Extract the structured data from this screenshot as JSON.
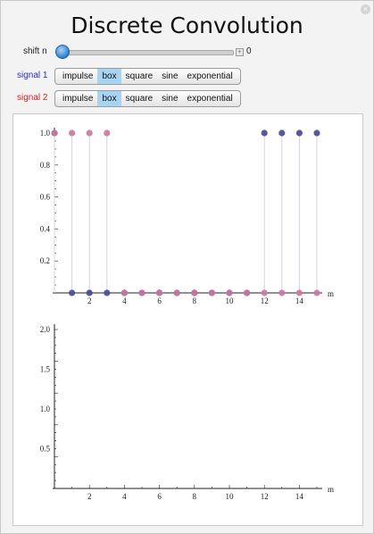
{
  "title": "Discrete Convolution",
  "close_icon": "close-icon",
  "controls": {
    "shift": {
      "label": "shift n",
      "value": "0",
      "fraction": 0.0,
      "plus_icon": "plus-icon"
    },
    "signal1": {
      "label": "signal 1",
      "color": "#2b2bcc",
      "options": [
        "impulse",
        "box",
        "square",
        "sine",
        "exponential"
      ],
      "selected": "box"
    },
    "signal2": {
      "label": "signal 2",
      "color": "#d42020",
      "options": [
        "impulse",
        "box",
        "square",
        "sine",
        "exponential"
      ],
      "selected": "box"
    }
  },
  "chart_data": [
    {
      "type": "scatter",
      "xlabel": "m",
      "xlim": [
        0,
        15
      ],
      "ylim": [
        0,
        1.0
      ],
      "x_ticks": [
        "2",
        "4",
        "6",
        "8",
        "10",
        "12",
        "14"
      ],
      "y_ticks": [
        "0.2",
        "0.4",
        "0.6",
        "0.8",
        "1.0"
      ],
      "series": [
        {
          "color": "#4a4a96",
          "x": [
            0,
            1,
            2,
            3,
            4,
            5,
            6,
            7,
            8,
            9,
            10,
            11,
            12,
            13,
            14,
            15
          ],
          "y": [
            1,
            0,
            0,
            0,
            0,
            0,
            0,
            0,
            0,
            0,
            0,
            0,
            1,
            1,
            1,
            1
          ]
        },
        {
          "color": "#c87aa0",
          "x": [
            0,
            1,
            2,
            3,
            4,
            5,
            6,
            7,
            8,
            9,
            10,
            11,
            12,
            13,
            14,
            15
          ],
          "y": [
            1,
            1,
            1,
            1,
            0,
            0,
            0,
            0,
            0,
            0,
            0,
            0,
            0,
            0,
            0,
            0
          ]
        }
      ]
    },
    {
      "type": "scatter",
      "xlabel": "m",
      "xlim": [
        0,
        15
      ],
      "ylim": [
        0,
        2.0
      ],
      "x_ticks": [
        "2",
        "4",
        "6",
        "8",
        "10",
        "12",
        "14"
      ],
      "y_ticks": [
        "0.5",
        "1.0",
        "1.5",
        "2.0"
      ],
      "series": []
    }
  ]
}
